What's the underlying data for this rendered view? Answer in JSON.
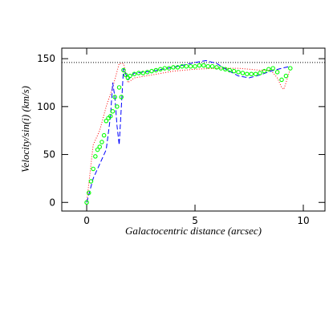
{
  "chart_data": {
    "type": "line",
    "xlabel": "Galactocentric distance (arcsec)",
    "ylabel": "Velocity/sin(i) (km/s)",
    "xlim": [
      -1.15,
      11
    ],
    "ylim": [
      -9,
      161
    ],
    "xticks": [
      0,
      5,
      10
    ],
    "yticks": [
      0,
      50,
      100,
      150
    ],
    "reference_line": {
      "y": 146,
      "color": "#000000"
    },
    "series": [
      {
        "style": "dotted",
        "color": "#ff0000",
        "x": [
          0,
          0.3,
          0.6,
          0.9,
          1.2,
          1.5,
          1.7,
          1.9,
          2.2,
          3,
          4,
          5,
          6,
          7,
          8,
          8.5,
          8.8,
          9.0,
          9.1,
          9.3,
          9.4
        ],
        "values": [
          0,
          60,
          75,
          100,
          120,
          145,
          145,
          125,
          130,
          133,
          137,
          139,
          140,
          140,
          138,
          138,
          130,
          120,
          118,
          132,
          140
        ]
      },
      {
        "style": "dashed",
        "color": "#0000ff",
        "x": [
          0,
          0.3,
          0.6,
          0.9,
          1.1,
          1.2,
          1.3,
          1.4,
          1.5,
          1.6,
          1.7,
          1.9,
          2.2,
          3,
          4,
          5,
          5.5,
          6,
          6.5,
          7,
          7.5,
          8,
          8.5,
          9,
          9.4
        ],
        "values": [
          0,
          25,
          40,
          55,
          90,
          125,
          110,
          80,
          60,
          100,
          140,
          128,
          135,
          137,
          141,
          146,
          148,
          145,
          138,
          132,
          130,
          133,
          137,
          140,
          142
        ]
      },
      {
        "style": "markers",
        "color": "#00ff00",
        "x": [
          0,
          0.1,
          0.2,
          0.3,
          0.4,
          0.5,
          0.6,
          0.7,
          0.8,
          0.9,
          1.0,
          1.1,
          1.2,
          1.3,
          1.4,
          1.5,
          1.6,
          1.7,
          1.8,
          1.9,
          2.0,
          2.2,
          2.4,
          2.6,
          2.8,
          3.0,
          3.2,
          3.4,
          3.6,
          3.8,
          4.0,
          4.2,
          4.4,
          4.6,
          4.8,
          5.0,
          5.2,
          5.4,
          5.6,
          5.8,
          6.0,
          6.2,
          6.4,
          6.6,
          6.8,
          7.0,
          7.2,
          7.4,
          7.6,
          7.8,
          8.0,
          8.2,
          8.4,
          8.6,
          8.8,
          9.0,
          9.2,
          9.4
        ],
        "values": [
          0,
          10,
          22,
          35,
          48,
          55,
          58,
          63,
          70,
          85,
          88,
          90,
          95,
          110,
          100,
          120,
          110,
          138,
          133,
          130,
          132,
          134,
          135,
          135,
          136,
          137,
          138,
          139,
          140,
          140,
          141,
          141,
          142,
          142,
          142,
          142,
          143,
          143,
          142,
          142,
          141,
          140,
          139,
          138,
          137,
          136,
          135,
          134,
          134,
          134,
          135,
          137,
          139,
          140,
          136,
          128,
          132,
          140
        ]
      }
    ]
  }
}
